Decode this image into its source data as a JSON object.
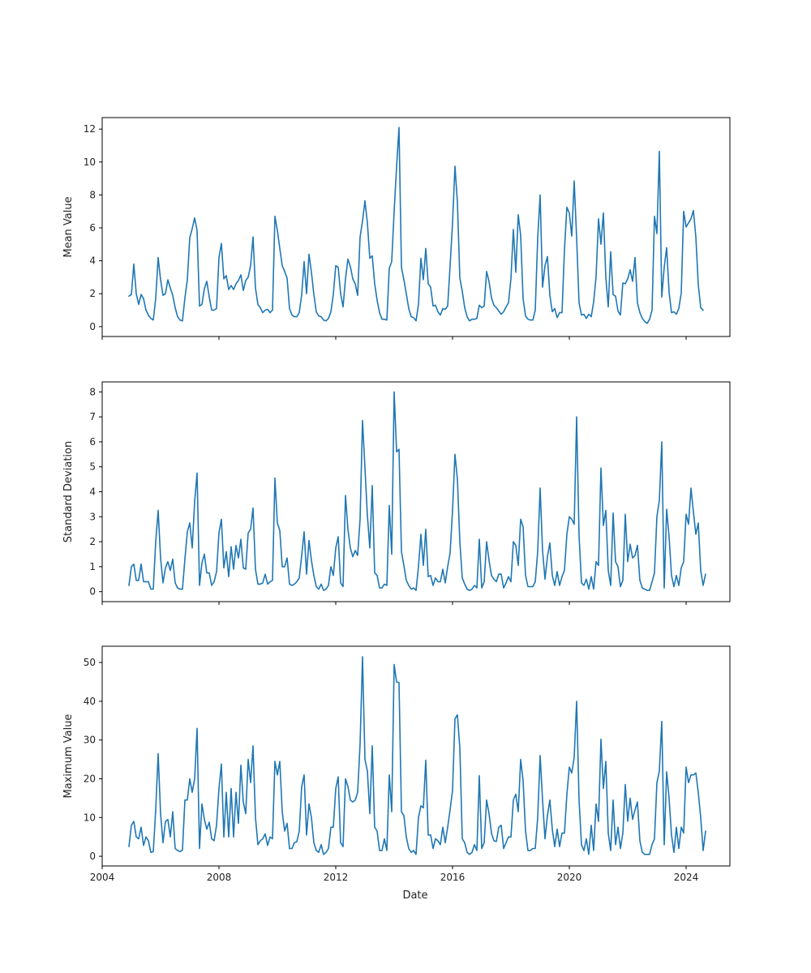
{
  "chart_data": {
    "type": "line",
    "sharex": true,
    "grid": false,
    "legend": "none",
    "line_color": "#1f77b4",
    "xlabel": "Date",
    "xlim": [
      2004.0,
      2025.5
    ],
    "xticks": [
      2004,
      2008,
      2012,
      2016,
      2020,
      2024
    ],
    "xtick_labels": [
      "2004",
      "2008",
      "2012",
      "2016",
      "2020",
      "2024"
    ],
    "x_start_year": 2004.917,
    "x_step_years": 0.08333,
    "panels": [
      {
        "ylabel": "Mean Value",
        "ylim": [
          -0.6,
          12.7
        ],
        "yticks": [
          0,
          2,
          4,
          6,
          8,
          10,
          12
        ],
        "ytick_labels": [
          "0",
          "2",
          "4",
          "6",
          "8",
          "10",
          "12"
        ],
        "values": [
          1.85,
          1.95,
          3.8,
          2.0,
          1.35,
          1.95,
          1.7,
          1.0,
          0.7,
          0.5,
          0.4,
          1.7,
          4.2,
          2.85,
          1.9,
          2.0,
          2.85,
          2.35,
          1.9,
          1.15,
          0.6,
          0.4,
          0.35,
          1.75,
          2.85,
          5.4,
          5.95,
          6.6,
          5.85,
          1.25,
          1.35,
          2.3,
          2.75,
          1.8,
          1.0,
          1.0,
          1.1,
          4.2,
          5.05,
          2.9,
          3.1,
          2.25,
          2.5,
          2.25,
          2.6,
          2.8,
          3.15,
          2.2,
          2.8,
          3.0,
          3.7,
          5.45,
          2.35,
          1.35,
          1.15,
          0.85,
          1.0,
          1.05,
          0.85,
          1.0,
          6.7,
          5.85,
          4.75,
          3.7,
          3.35,
          2.95,
          1.1,
          0.7,
          0.6,
          0.6,
          0.85,
          1.95,
          3.95,
          2.0,
          4.4,
          3.3,
          1.95,
          0.9,
          0.65,
          0.6,
          0.4,
          0.35,
          0.5,
          0.9,
          1.95,
          3.7,
          3.6,
          2.0,
          1.2,
          2.9,
          4.1,
          3.65,
          2.9,
          2.6,
          1.9,
          5.45,
          6.4,
          7.65,
          6.3,
          4.15,
          4.3,
          2.6,
          1.6,
          0.85,
          0.45,
          0.45,
          0.4,
          3.55,
          3.95,
          7.0,
          9.7,
          12.1,
          3.6,
          2.85,
          2.0,
          1.1,
          0.6,
          0.55,
          0.35,
          1.35,
          4.15,
          2.85,
          4.75,
          2.6,
          2.4,
          1.25,
          1.3,
          0.9,
          0.7,
          1.1,
          1.05,
          1.25,
          3.7,
          6.3,
          9.75,
          7.55,
          2.95,
          2.15,
          1.15,
          0.6,
          0.35,
          0.45,
          0.45,
          0.5,
          1.3,
          1.15,
          1.25,
          3.35,
          2.75,
          1.75,
          1.3,
          1.15,
          0.95,
          0.75,
          0.9,
          1.2,
          1.45,
          2.9,
          5.9,
          3.3,
          6.8,
          5.55,
          1.7,
          0.65,
          0.45,
          0.4,
          0.4,
          1.0,
          5.35,
          8.0,
          2.4,
          3.7,
          4.25,
          1.9,
          0.9,
          1.1,
          0.55,
          0.85,
          0.85,
          4.65,
          7.25,
          6.9,
          5.5,
          8.85,
          5.4,
          1.45,
          0.7,
          0.75,
          0.5,
          0.75,
          0.6,
          1.5,
          3.05,
          6.55,
          5.0,
          6.9,
          3.0,
          1.2,
          4.55,
          1.95,
          1.85,
          0.95,
          0.7,
          2.65,
          2.6,
          2.9,
          3.45,
          2.75,
          4.2,
          1.45,
          0.85,
          0.5,
          0.3,
          0.2,
          0.45,
          1.0,
          6.7,
          5.65,
          10.65,
          1.8,
          3.6,
          4.8,
          2.1,
          0.85,
          0.9,
          0.75,
          1.1,
          2.05,
          7.0,
          6.05,
          6.3,
          6.55,
          7.05,
          5.45,
          2.55,
          1.15,
          1.0
        ]
      },
      {
        "ylabel": "Standard Deviation",
        "ylim": [
          -0.4,
          8.4
        ],
        "yticks": [
          0,
          1,
          2,
          3,
          4,
          5,
          6,
          7,
          8
        ],
        "ytick_labels": [
          "0",
          "1",
          "2",
          "3",
          "4",
          "5",
          "6",
          "7",
          "8"
        ],
        "values": [
          0.25,
          1.0,
          1.1,
          0.45,
          0.45,
          1.1,
          0.4,
          0.4,
          0.4,
          0.1,
          0.1,
          2.0,
          3.25,
          1.35,
          0.35,
          0.95,
          1.2,
          0.85,
          1.3,
          0.35,
          0.15,
          0.1,
          0.1,
          1.3,
          2.4,
          2.75,
          1.75,
          3.6,
          4.75,
          0.25,
          1.15,
          1.5,
          0.75,
          0.75,
          0.25,
          0.4,
          0.8,
          2.35,
          2.9,
          0.95,
          1.6,
          0.6,
          1.8,
          0.9,
          1.85,
          1.35,
          2.1,
          0.95,
          0.9,
          2.35,
          2.5,
          3.35,
          0.9,
          0.3,
          0.3,
          0.35,
          0.7,
          0.3,
          0.4,
          0.45,
          4.55,
          2.75,
          2.45,
          1.0,
          1.0,
          1.35,
          0.3,
          0.25,
          0.3,
          0.4,
          0.55,
          1.45,
          2.4,
          0.7,
          2.05,
          1.25,
          0.65,
          0.2,
          0.1,
          0.3,
          0.05,
          0.1,
          0.25,
          1.0,
          0.65,
          1.75,
          2.2,
          0.35,
          0.2,
          3.85,
          2.5,
          1.75,
          1.4,
          1.65,
          1.45,
          2.9,
          6.85,
          4.95,
          3.05,
          1.75,
          4.25,
          0.75,
          0.65,
          0.15,
          0.15,
          0.3,
          0.25,
          3.45,
          1.5,
          8.0,
          5.6,
          5.7,
          1.6,
          1.05,
          0.45,
          0.25,
          0.1,
          0.15,
          0.05,
          1.0,
          2.3,
          1.05,
          2.5,
          0.6,
          0.65,
          0.25,
          0.55,
          0.4,
          0.4,
          0.9,
          0.35,
          1.0,
          1.55,
          3.25,
          5.5,
          4.5,
          2.0,
          0.55,
          0.3,
          0.1,
          0.05,
          0.1,
          0.25,
          0.15,
          2.1,
          0.15,
          0.4,
          2.0,
          1.25,
          0.65,
          0.5,
          0.4,
          0.7,
          0.7,
          0.15,
          0.35,
          0.6,
          0.4,
          2.0,
          1.85,
          1.05,
          2.9,
          2.6,
          0.65,
          0.2,
          0.2,
          0.2,
          0.4,
          1.6,
          4.15,
          1.65,
          0.5,
          1.4,
          1.95,
          0.65,
          0.25,
          0.8,
          0.25,
          0.6,
          0.85,
          2.3,
          3.0,
          2.9,
          2.7,
          7.0,
          2.25,
          0.35,
          0.25,
          0.5,
          0.1,
          0.6,
          0.1,
          1.2,
          1.05,
          4.95,
          2.65,
          3.25,
          0.85,
          0.25,
          3.15,
          1.2,
          1.0,
          0.2,
          0.45,
          3.1,
          1.2,
          1.9,
          1.35,
          1.45,
          1.85,
          0.45,
          0.15,
          0.1,
          0.05,
          0.05,
          0.4,
          0.75,
          3.0,
          3.65,
          6.0,
          0.15,
          3.3,
          2.2,
          0.65,
          0.2,
          0.65,
          0.25,
          0.95,
          1.2,
          3.1,
          2.7,
          4.15,
          3.2,
          2.3,
          2.75,
          0.85,
          0.25,
          0.7
        ]
      },
      {
        "ylabel": "Maximum Value",
        "ylim": [
          -2.5,
          54.2
        ],
        "yticks": [
          0,
          10,
          20,
          30,
          40,
          50
        ],
        "ytick_labels": [
          "0",
          "10",
          "20",
          "30",
          "40",
          "50"
        ],
        "values": [
          2.5,
          8.0,
          9.0,
          5.0,
          4.5,
          7.5,
          2.8,
          5.0,
          4.0,
          1.0,
          1.2,
          12.0,
          26.5,
          11.0,
          3.5,
          9.0,
          9.5,
          5.0,
          11.5,
          2.0,
          1.5,
          1.2,
          1.6,
          14.5,
          14.5,
          20.0,
          16.5,
          20.0,
          33.0,
          2.0,
          13.5,
          9.5,
          7.0,
          8.8,
          4.5,
          4.0,
          8.0,
          17.5,
          23.8,
          5.0,
          16.5,
          5.0,
          17.5,
          5.0,
          16.5,
          8.5,
          23.5,
          14.0,
          11.0,
          25.0,
          19.0,
          28.5,
          10.0,
          3.0,
          4.0,
          4.5,
          5.8,
          2.8,
          5.0,
          4.5,
          24.5,
          21.0,
          24.5,
          11.5,
          6.5,
          8.5,
          2.0,
          2.0,
          3.5,
          3.8,
          6.5,
          18.0,
          21.0,
          5.5,
          13.5,
          10.0,
          3.5,
          1.5,
          1.0,
          3.0,
          0.5,
          1.0,
          2.0,
          7.5,
          7.5,
          17.5,
          20.5,
          3.5,
          2.5,
          20.0,
          18.0,
          14.5,
          14.0,
          14.5,
          16.5,
          29.0,
          51.5,
          25.0,
          22.0,
          11.0,
          28.5,
          7.5,
          6.5,
          1.5,
          1.5,
          4.5,
          1.5,
          21.0,
          11.5,
          49.5,
          45.0,
          44.8,
          11.5,
          10.5,
          5.0,
          2.0,
          1.0,
          1.5,
          0.5,
          10.0,
          13.0,
          12.5,
          24.8,
          5.5,
          5.5,
          2.0,
          4.5,
          4.0,
          3.0,
          7.5,
          3.5,
          7.5,
          12.0,
          17.0,
          35.5,
          36.5,
          28.0,
          4.5,
          3.5,
          1.0,
          0.5,
          1.0,
          3.0,
          1.5,
          20.8,
          2.0,
          3.5,
          14.5,
          11.0,
          6.0,
          4.0,
          3.8,
          7.5,
          8.0,
          2.0,
          3.5,
          5.0,
          5.0,
          14.5,
          16.0,
          11.5,
          25.0,
          19.5,
          6.5,
          1.5,
          1.5,
          2.0,
          2.0,
          10.0,
          26.0,
          14.5,
          4.5,
          10.5,
          14.5,
          7.0,
          2.5,
          7.0,
          2.5,
          6.0,
          6.0,
          16.0,
          23.0,
          21.5,
          25.5,
          40.0,
          14.5,
          3.0,
          1.5,
          4.5,
          0.5,
          8.0,
          1.5,
          13.5,
          9.0,
          30.2,
          17.5,
          24.5,
          6.0,
          1.5,
          14.5,
          3.0,
          7.5,
          2.0,
          6.0,
          18.5,
          9.0,
          15.0,
          9.5,
          12.0,
          14.0,
          4.0,
          1.0,
          0.5,
          0.5,
          0.5,
          3.0,
          4.5,
          19.0,
          22.0,
          34.8,
          3.0,
          21.8,
          15.0,
          5.5,
          1.0,
          7.5,
          2.0,
          7.5,
          6.0,
          23.0,
          19.0,
          21.0,
          21.0,
          21.5,
          16.5,
          10.0,
          1.5,
          6.5
        ]
      }
    ]
  }
}
